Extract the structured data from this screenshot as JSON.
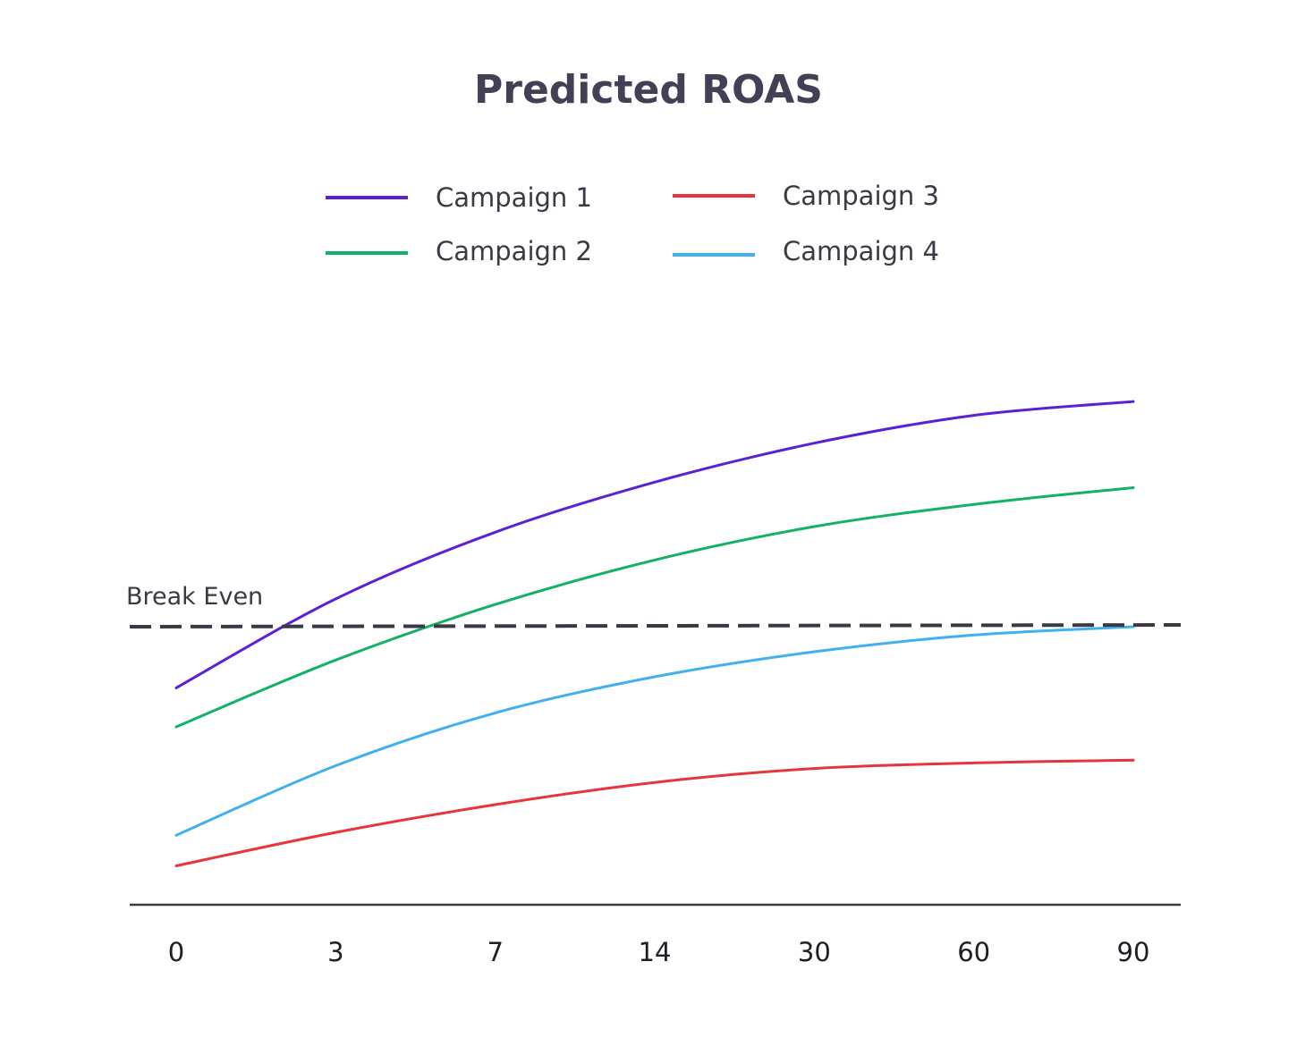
{
  "chart_data": {
    "type": "line",
    "title": "Predicted ROAS",
    "xlabel": "",
    "ylabel": "",
    "categories": [
      "0",
      "3",
      "7",
      "14",
      "30",
      "60",
      "90"
    ],
    "ylim": [
      0,
      100
    ],
    "grid": false,
    "legend_position": "top",
    "reference_line": {
      "label": "Break Even",
      "value": 50,
      "style": "dashed",
      "color": "#3b3a44"
    },
    "series": [
      {
        "name": "Campaign 1",
        "color": "#5b21d9",
        "values": [
          39,
          55,
          67,
          76,
          83,
          88,
          90.5
        ]
      },
      {
        "name": "Campaign 2",
        "color": "#11b265",
        "values": [
          32,
          44,
          54,
          62,
          68,
          72,
          75
        ]
      },
      {
        "name": "Campaign 3",
        "color": "#e8343c",
        "values": [
          7,
          13,
          18,
          22,
          24.5,
          25.5,
          26
        ]
      },
      {
        "name": "Campaign 4",
        "color": "#3fb0f0",
        "values": [
          12.5,
          25,
          34.5,
          41,
          45.5,
          48.5,
          50
        ]
      }
    ]
  }
}
